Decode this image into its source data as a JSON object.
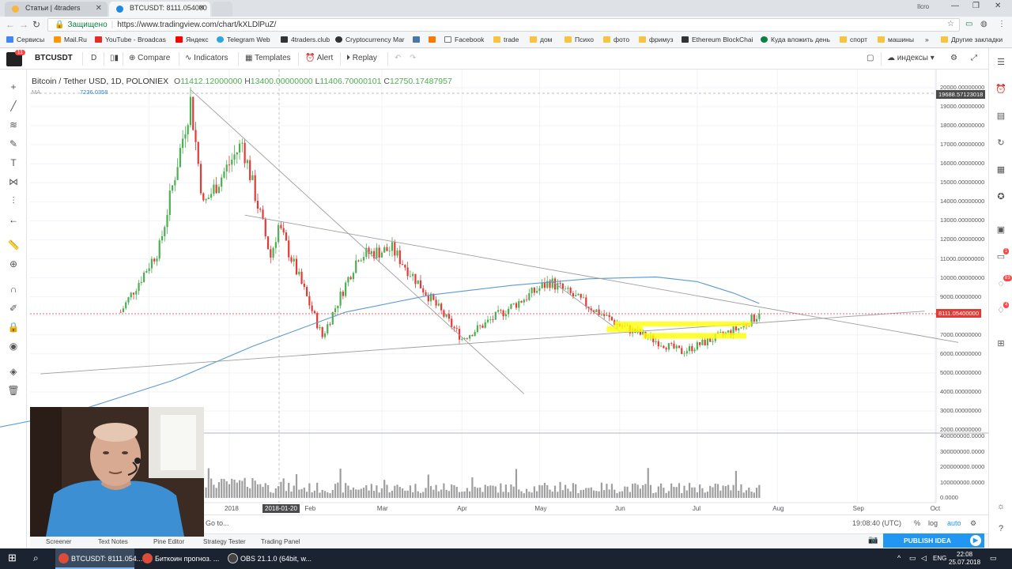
{
  "browser": {
    "tabs": [
      {
        "title": "Статьи | 4traders",
        "active": false
      },
      {
        "title": "BTCUSDT: 8111.054000",
        "active": true
      }
    ],
    "profile": "Ilcro",
    "secure_label": "Защищено",
    "url": "https://www.tradingview.com/chart/kXLDlPuZ/",
    "bookmarks": [
      {
        "label": "Сервисы",
        "color": "#4285f4"
      },
      {
        "label": "Mail.Ru",
        "color": "#ff9800"
      },
      {
        "label": "YouTube - Broadcas",
        "color": "#e52d27"
      },
      {
        "label": "Яндекс",
        "color": "#ff0000"
      },
      {
        "label": "Telegram Web",
        "color": "#2ca5e0"
      },
      {
        "label": "4traders.club",
        "color": "#333333"
      },
      {
        "label": "Cryptocurrency Mar",
        "color": "#333333"
      },
      {
        "label": "",
        "color": "#4a76a8"
      },
      {
        "label": "",
        "color": "#f57c00"
      },
      {
        "label": "Facebook",
        "color": "#ffffff"
      },
      {
        "label": "trade",
        "color": "#f6c343"
      },
      {
        "label": "дом",
        "color": "#f6c343"
      },
      {
        "label": "Психо",
        "color": "#f6c343"
      },
      {
        "label": "фото",
        "color": "#f6c343"
      },
      {
        "label": "фримуз",
        "color": "#f6c343"
      },
      {
        "label": "Ethereum BlockChai",
        "color": "#333333"
      },
      {
        "label": "Куда вложить день",
        "color": "#0b8043"
      },
      {
        "label": "спорт",
        "color": "#f6c343"
      },
      {
        "label": "машины",
        "color": "#f6c343"
      }
    ],
    "other_bookmarks": "Другие закладки",
    "more_bookmarks": "»"
  },
  "toolbar": {
    "symbol": "BTCUSDT",
    "interval": "D",
    "compare": "Compare",
    "indicators": "Indicators",
    "templates": "Templates",
    "alert": "Alert",
    "replay": "Replay",
    "indexes": "индексы",
    "logo_badge": "11"
  },
  "chart": {
    "title": "Bitcoin / Tether USD, 1D, POLONIEX",
    "ohlc": {
      "o_label": "O",
      "o": "11412.12000000",
      "h_label": "H",
      "h": "13400.00000000",
      "l_label": "L",
      "l": "11406.70000101",
      "c_label": "C",
      "c": "12750.17487957"
    },
    "ma_label": "MA",
    "ma_value": "7236.0358",
    "last_price": "8111.05400000",
    "crosshair_price": "19688.57123018",
    "crosshair_date": "2018-01-20",
    "colors": {
      "up": "#4caf50",
      "down": "#e53935",
      "ma": "#5b9bd5",
      "price_label": "#e53935",
      "crosshair_label": "#4a4a4a",
      "highlight": "#ffff00"
    }
  },
  "chart_data": {
    "type": "candlestick",
    "symbol": "BTCUSDT",
    "exchange": "POLONIEX",
    "interval": "1D",
    "y_ticks": [
      "20000.00000000",
      "19000.00000000",
      "18000.00000000",
      "17000.00000000",
      "16000.00000000",
      "15000.00000000",
      "14000.00000000",
      "13000.00000000",
      "12000.00000000",
      "11000.00000000",
      "10000.00000000",
      "9000.00000000",
      "8000.00000000",
      "7000.00000000",
      "6000.00000000",
      "5000.00000000",
      "4000.00000000",
      "3000.00000000",
      "2000.00000000"
    ],
    "volume_ticks": [
      "400000000.0000",
      "300000000.0000",
      "200000000.0000",
      "100000000.0000",
      "0.0000"
    ],
    "x_ticks": [
      "2018",
      "Feb",
      "Mar",
      "Apr",
      "May",
      "Jun",
      "Jul",
      "Aug",
      "Sep",
      "Oct"
    ],
    "ylim": [
      2000,
      20000
    ],
    "last_close": 8111.054,
    "approx_close_path": [
      {
        "date": "2017-11-20",
        "close": 8200
      },
      {
        "date": "2017-12-05",
        "close": 11600
      },
      {
        "date": "2017-12-17",
        "close": 19300
      },
      {
        "date": "2017-12-22",
        "close": 13800
      },
      {
        "date": "2018-01-06",
        "close": 17100
      },
      {
        "date": "2018-01-17",
        "close": 11100
      },
      {
        "date": "2018-01-20",
        "close": 12750
      },
      {
        "date": "2018-02-06",
        "close": 6900
      },
      {
        "date": "2018-02-20",
        "close": 11200
      },
      {
        "date": "2018-03-05",
        "close": 11500
      },
      {
        "date": "2018-04-01",
        "close": 6800
      },
      {
        "date": "2018-05-05",
        "close": 9800
      },
      {
        "date": "2018-06-01",
        "close": 7500
      },
      {
        "date": "2018-06-25",
        "close": 6100
      },
      {
        "date": "2018-07-18",
        "close": 7400
      },
      {
        "date": "2018-07-25",
        "close": 8111
      }
    ]
  },
  "status": {
    "goto": "Go to...",
    "time": "19:08:40 (UTC)",
    "percent": "%",
    "log": "log",
    "auto": "auto"
  },
  "panels": [
    "Screener",
    "Text Notes",
    "Pine Editor",
    "Strategy Tester",
    "Trading Panel"
  ],
  "publish": "PUBLISH IDEA",
  "right_badges": [
    "1",
    "83",
    "4"
  ],
  "taskbar": {
    "items": [
      {
        "label": "BTCUSDT: 8111.054...",
        "active": true
      },
      {
        "label": "Биткоин прогноз. ...",
        "active": false
      },
      {
        "label": "OBS 21.1.0 (64bit, w...",
        "active": false
      }
    ],
    "lang": "ENG",
    "time": "22:08",
    "date": "25.07.2018"
  }
}
